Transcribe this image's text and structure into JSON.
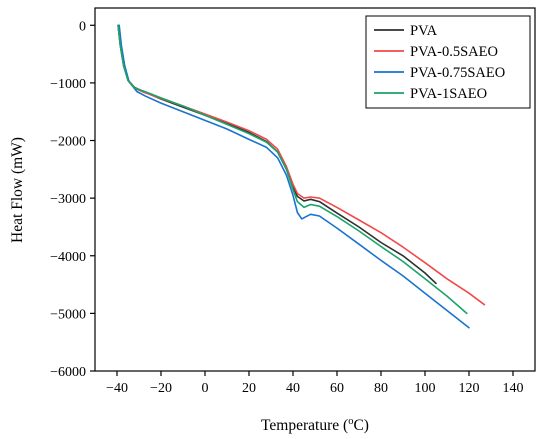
{
  "chart_data": {
    "type": "line",
    "title": "",
    "xlabel_main": "Temperature (",
    "xlabel_sup": "o",
    "xlabel_tail": "C)",
    "ylabel": "Heat Flow (mW)",
    "xlim": [
      -50,
      150
    ],
    "ylim": [
      -6000,
      300
    ],
    "grid": false,
    "legend_position": "top-right",
    "x_ticks": [
      -40,
      -20,
      0,
      20,
      40,
      60,
      80,
      100,
      120,
      140
    ],
    "x_tick_labels": [
      "−40",
      "−20",
      "0",
      "20",
      "40",
      "60",
      "80",
      "100",
      "120",
      "140"
    ],
    "y_ticks": [
      0,
      -1000,
      -2000,
      -3000,
      -4000,
      -5000,
      -6000
    ],
    "y_tick_labels": [
      "0",
      "−1000",
      "−2000",
      "−3000",
      "−4000",
      "−5000",
      "−6000"
    ],
    "series": [
      {
        "name": "PVA",
        "color": "#2f2f2f",
        "points": [
          [
            -39.5,
            0
          ],
          [
            -38.5,
            -350
          ],
          [
            -37,
            -700
          ],
          [
            -35,
            -950
          ],
          [
            -32,
            -1080
          ],
          [
            -28,
            -1150
          ],
          [
            -20,
            -1280
          ],
          [
            -10,
            -1420
          ],
          [
            0,
            -1560
          ],
          [
            10,
            -1700
          ],
          [
            20,
            -1860
          ],
          [
            28,
            -2020
          ],
          [
            33,
            -2200
          ],
          [
            37,
            -2500
          ],
          [
            40,
            -2800
          ],
          [
            42,
            -2970
          ],
          [
            45,
            -3050
          ],
          [
            48,
            -3020
          ],
          [
            52,
            -3060
          ],
          [
            60,
            -3260
          ],
          [
            70,
            -3500
          ],
          [
            80,
            -3770
          ],
          [
            90,
            -4000
          ],
          [
            100,
            -4300
          ],
          [
            105,
            -4480
          ]
        ]
      },
      {
        "name": "PVA-0.5SAEO",
        "color": "#f04a4a",
        "points": [
          [
            -39.5,
            0
          ],
          [
            -38.5,
            -350
          ],
          [
            -37,
            -700
          ],
          [
            -35,
            -950
          ],
          [
            -32,
            -1090
          ],
          [
            -28,
            -1160
          ],
          [
            -20,
            -1270
          ],
          [
            -10,
            -1400
          ],
          [
            0,
            -1540
          ],
          [
            10,
            -1680
          ],
          [
            20,
            -1830
          ],
          [
            28,
            -1980
          ],
          [
            33,
            -2150
          ],
          [
            37,
            -2450
          ],
          [
            40,
            -2760
          ],
          [
            42,
            -2920
          ],
          [
            45,
            -3000
          ],
          [
            48,
            -2980
          ],
          [
            52,
            -3000
          ],
          [
            60,
            -3160
          ],
          [
            70,
            -3380
          ],
          [
            80,
            -3600
          ],
          [
            90,
            -3850
          ],
          [
            100,
            -4120
          ],
          [
            110,
            -4400
          ],
          [
            120,
            -4650
          ],
          [
            127,
            -4850
          ]
        ]
      },
      {
        "name": "PVA-0.75SAEO",
        "color": "#1a73d1",
        "points": [
          [
            -39,
            0
          ],
          [
            -38,
            -350
          ],
          [
            -36.5,
            -700
          ],
          [
            -34.5,
            -980
          ],
          [
            -31,
            -1150
          ],
          [
            -27,
            -1230
          ],
          [
            -20,
            -1350
          ],
          [
            -10,
            -1500
          ],
          [
            0,
            -1650
          ],
          [
            10,
            -1800
          ],
          [
            20,
            -1980
          ],
          [
            28,
            -2120
          ],
          [
            33,
            -2300
          ],
          [
            37,
            -2600
          ],
          [
            40,
            -2950
          ],
          [
            42,
            -3250
          ],
          [
            44,
            -3360
          ],
          [
            46,
            -3320
          ],
          [
            48,
            -3280
          ],
          [
            52,
            -3310
          ],
          [
            60,
            -3520
          ],
          [
            70,
            -3800
          ],
          [
            80,
            -4080
          ],
          [
            90,
            -4350
          ],
          [
            100,
            -4650
          ],
          [
            110,
            -4950
          ],
          [
            120,
            -5250
          ]
        ]
      },
      {
        "name": "PVA-1SAEO",
        "color": "#1aa36a",
        "points": [
          [
            -39.5,
            0
          ],
          [
            -38.5,
            -350
          ],
          [
            -37,
            -700
          ],
          [
            -35,
            -960
          ],
          [
            -32,
            -1090
          ],
          [
            -28,
            -1140
          ],
          [
            -20,
            -1260
          ],
          [
            -10,
            -1400
          ],
          [
            0,
            -1560
          ],
          [
            10,
            -1720
          ],
          [
            20,
            -1880
          ],
          [
            28,
            -2030
          ],
          [
            33,
            -2200
          ],
          [
            37,
            -2500
          ],
          [
            40,
            -2850
          ],
          [
            42,
            -3060
          ],
          [
            45,
            -3160
          ],
          [
            48,
            -3110
          ],
          [
            52,
            -3140
          ],
          [
            60,
            -3320
          ],
          [
            70,
            -3570
          ],
          [
            80,
            -3840
          ],
          [
            90,
            -4100
          ],
          [
            100,
            -4400
          ],
          [
            110,
            -4700
          ],
          [
            119,
            -5000
          ]
        ]
      }
    ]
  }
}
